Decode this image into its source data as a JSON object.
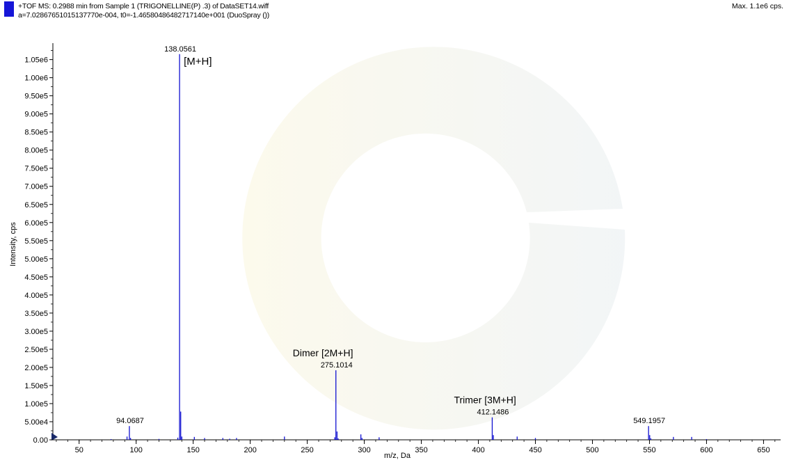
{
  "header": {
    "line1": "+TOF MS: 0.2988 min from Sample 1 (TRIGONELLINE(P) .3) of DataSET14.wiff",
    "line2": "a=7.02867651015137770e-004, t0=-1.46580486482717140e+001 (DuoSpray ())",
    "max_label": "Max. 1.1e6 cps.",
    "marker_color": "#1616d8"
  },
  "chart_data": {
    "type": "bar",
    "title": "",
    "xlabel": "m/z, Da",
    "ylabel": "Intensity, cps",
    "xlim": [
      27,
      665
    ],
    "ylim": [
      0,
      1080000
    ],
    "x_ticks": [
      50,
      100,
      150,
      200,
      250,
      300,
      350,
      400,
      450,
      500,
      550,
      600,
      650
    ],
    "y_ticks": [
      0,
      50000,
      100000,
      150000,
      200000,
      250000,
      300000,
      350000,
      400000,
      450000,
      500000,
      550000,
      600000,
      650000,
      700000,
      750000,
      800000,
      850000,
      900000,
      950000,
      1000000,
      1050000
    ],
    "y_tick_labels": [
      "0.00",
      "5.00e4",
      "1.00e5",
      "1.50e5",
      "2.00e5",
      "2.50e5",
      "3.00e5",
      "3.50e5",
      "4.00e5",
      "4.50e5",
      "5.00e5",
      "5.50e5",
      "6.00e5",
      "6.50e5",
      "7.00e5",
      "7.50e5",
      "8.00e5",
      "8.50e5",
      "9.00e5",
      "9.50e5",
      "1.00e6",
      "1.05e6"
    ],
    "series_color": "#1010d0",
    "peaks": [
      {
        "mz": 78.0,
        "intensity": 2000
      },
      {
        "mz": 92.0,
        "intensity": 9000
      },
      {
        "mz": 94.0687,
        "intensity": 38000
      },
      {
        "mz": 95.1,
        "intensity": 5000
      },
      {
        "mz": 120.0,
        "intensity": 2500
      },
      {
        "mz": 136.5,
        "intensity": 6000
      },
      {
        "mz": 138.0561,
        "intensity": 1065000
      },
      {
        "mz": 139.06,
        "intensity": 78000
      },
      {
        "mz": 140.06,
        "intensity": 9000
      },
      {
        "mz": 151.0,
        "intensity": 8000
      },
      {
        "mz": 160.0,
        "intensity": 5000
      },
      {
        "mz": 176.0,
        "intensity": 5000
      },
      {
        "mz": 182.0,
        "intensity": 3000
      },
      {
        "mz": 188.0,
        "intensity": 5000
      },
      {
        "mz": 230.0,
        "intensity": 9000
      },
      {
        "mz": 274.1,
        "intensity": 7000
      },
      {
        "mz": 275.1014,
        "intensity": 192000
      },
      {
        "mz": 276.1,
        "intensity": 23000
      },
      {
        "mz": 277.1,
        "intensity": 4000
      },
      {
        "mz": 297.0,
        "intensity": 15000
      },
      {
        "mz": 298.0,
        "intensity": 5000
      },
      {
        "mz": 313.0,
        "intensity": 7000
      },
      {
        "mz": 412.1486,
        "intensity": 62000
      },
      {
        "mz": 413.15,
        "intensity": 13000
      },
      {
        "mz": 434.0,
        "intensity": 9000
      },
      {
        "mz": 450.0,
        "intensity": 5000
      },
      {
        "mz": 549.1957,
        "intensity": 38000
      },
      {
        "mz": 550.2,
        "intensity": 13000
      },
      {
        "mz": 551.2,
        "intensity": 4000
      },
      {
        "mz": 571.0,
        "intensity": 8000
      },
      {
        "mz": 587.0,
        "intensity": 8000
      },
      {
        "mz": 600.0,
        "intensity": 2000
      }
    ],
    "peak_labels": [
      {
        "mz": 138.0561,
        "intensity": 1065000,
        "text": "138.0561"
      },
      {
        "mz": 94.0687,
        "intensity": 38000,
        "text": "94.0687"
      },
      {
        "mz": 275.1014,
        "intensity": 192000,
        "text": "275.1014"
      },
      {
        "mz": 412.1486,
        "intensity": 62000,
        "text": "412.1486"
      },
      {
        "mz": 549.1957,
        "intensity": 38000,
        "text": "549.1957"
      }
    ],
    "annotations": [
      {
        "text": "[M+H]",
        "mz": 138.0561,
        "intensity": 1065000
      },
      {
        "text": "Dimer [2M+H]",
        "mz": 275.1014,
        "intensity": 192000
      },
      {
        "text": "Trimer [3M+H]",
        "mz": 412.1486,
        "intensity": 62000
      }
    ]
  }
}
